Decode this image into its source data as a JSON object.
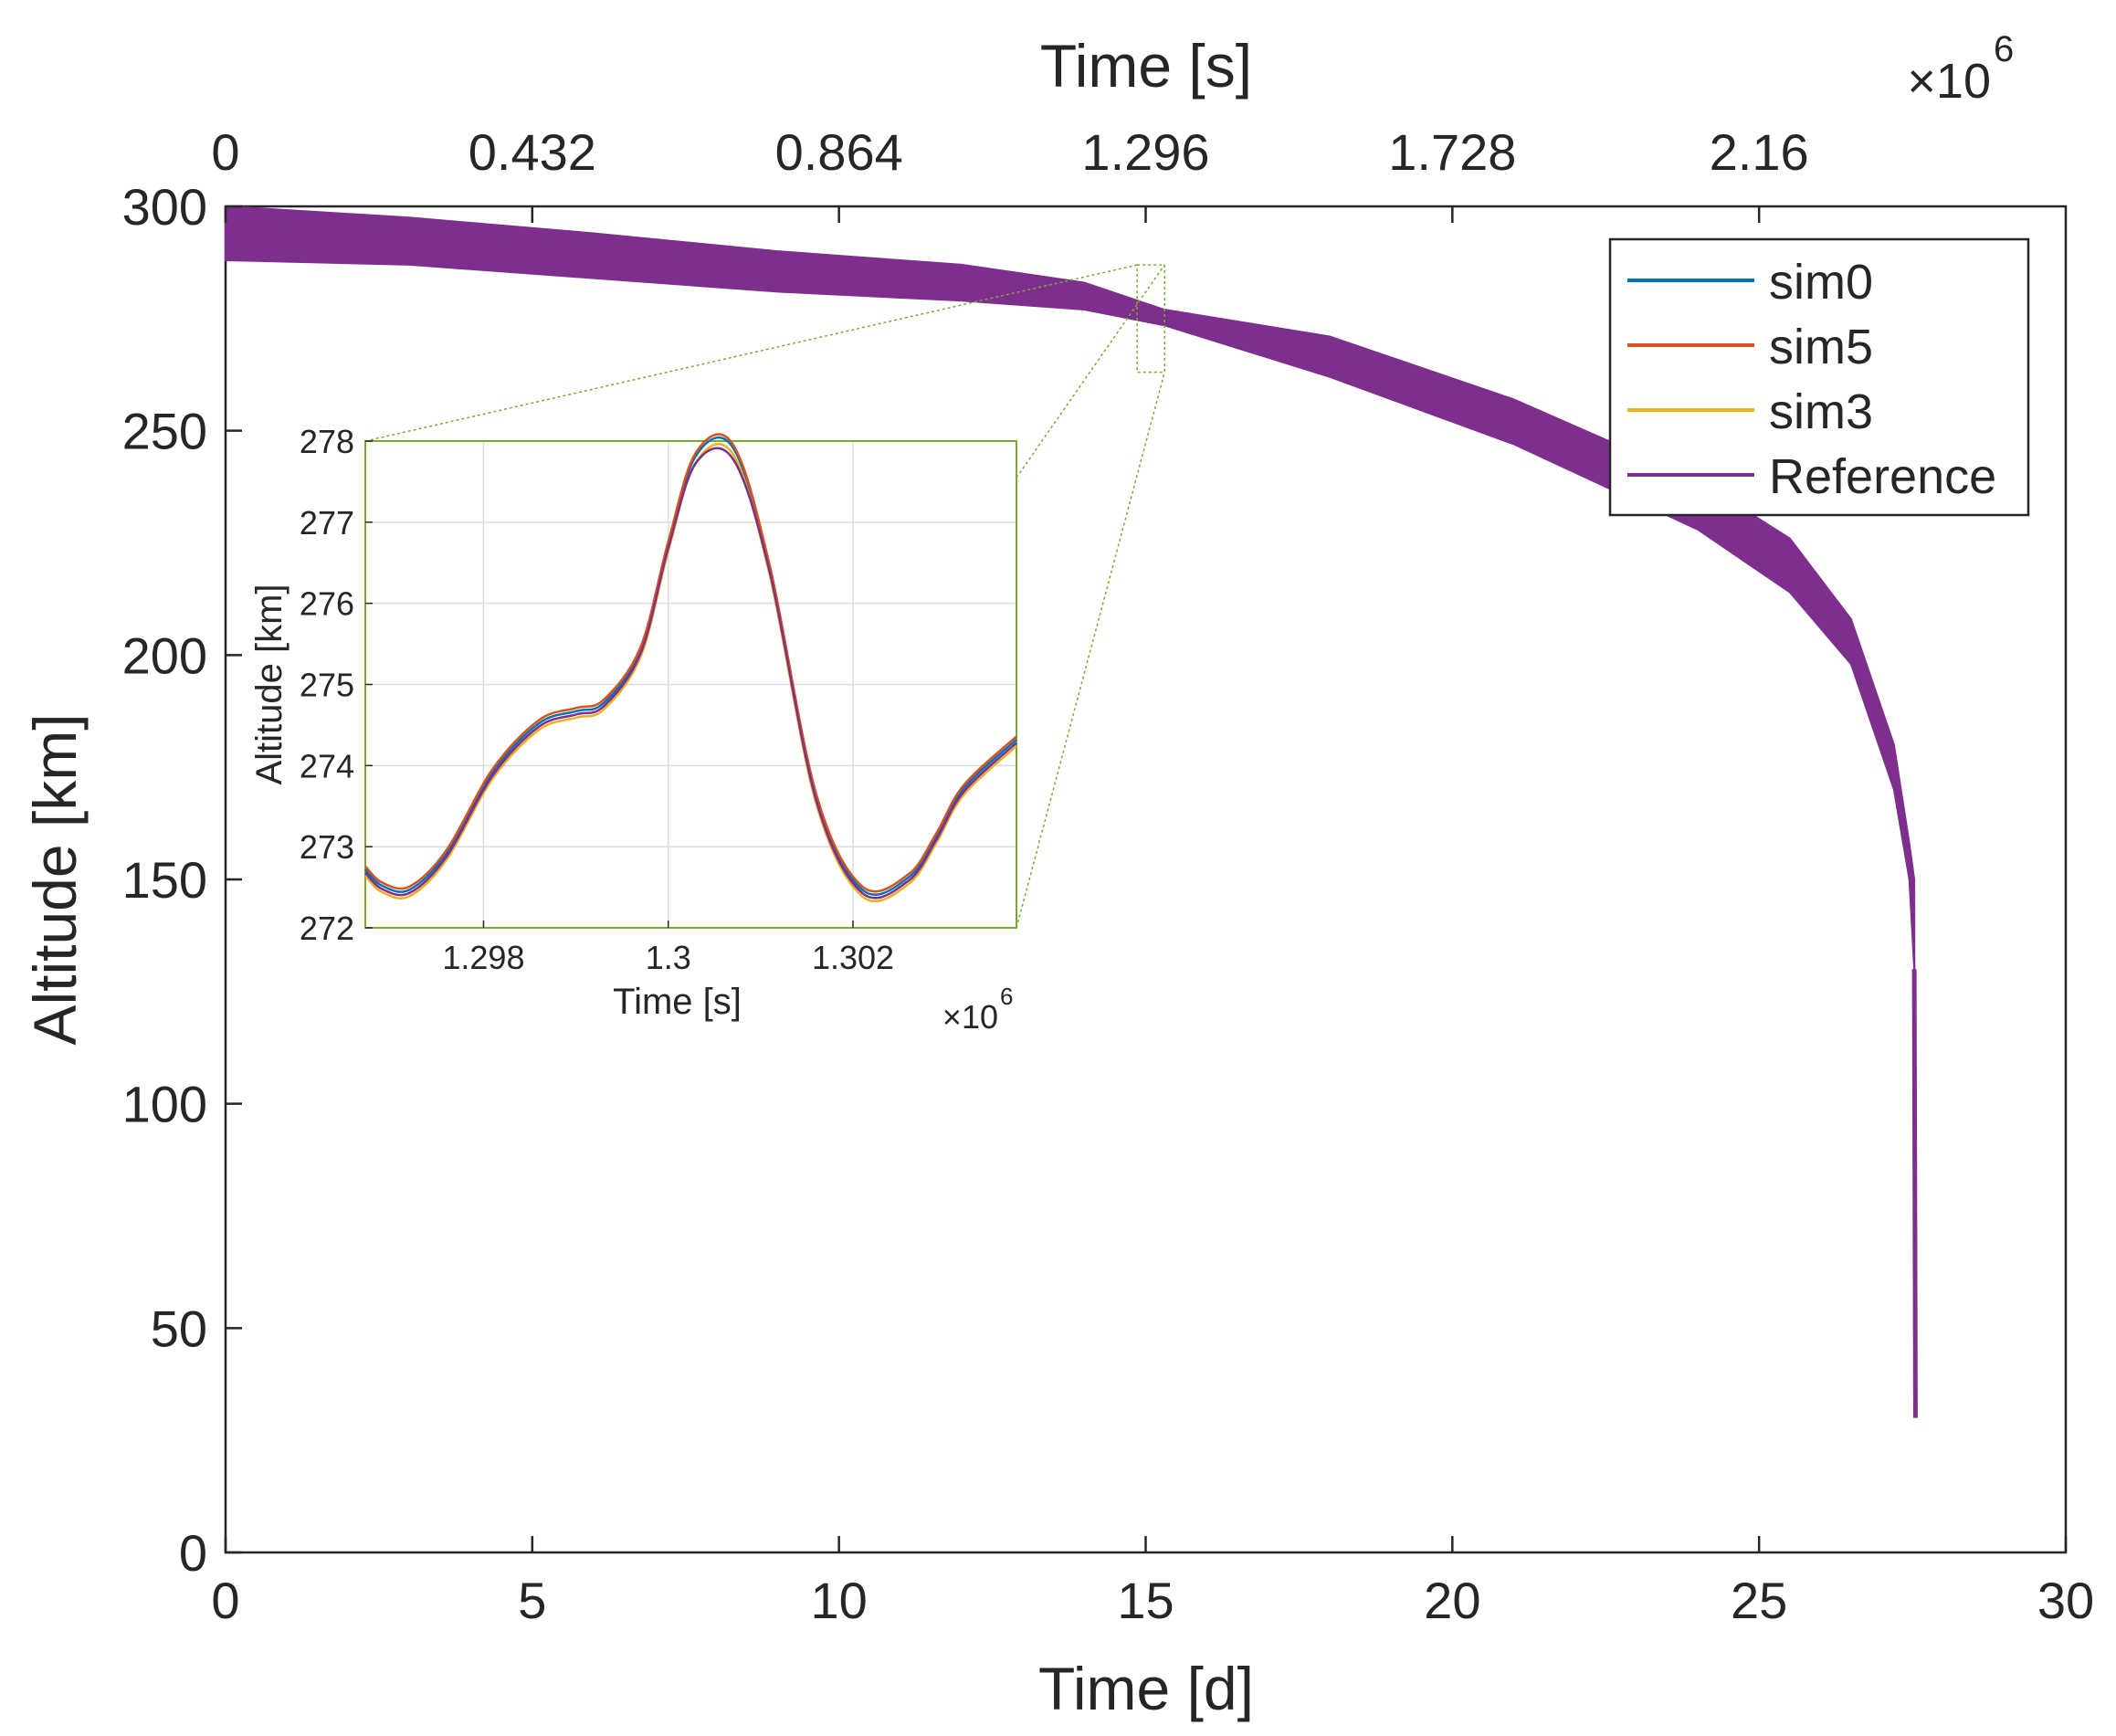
{
  "chart_data": {
    "type": "line",
    "title": "",
    "xlabel": "Time [d]",
    "ylabel": "Altitude [km]",
    "xlim": [
      0,
      30
    ],
    "ylim": [
      0,
      300
    ],
    "xticks": [
      0,
      5,
      10,
      15,
      20,
      25,
      30
    ],
    "yticks": [
      0,
      50,
      100,
      150,
      200,
      250,
      300
    ],
    "grid": false,
    "top_axis": {
      "label": "Time [s]",
      "ticks": [
        "0",
        "0.432",
        "0.864",
        "1.296",
        "1.728",
        "2.16"
      ],
      "tick_days": [
        0,
        5,
        10,
        15,
        20,
        25
      ],
      "exponent": "×10",
      "exponent_power": "6"
    },
    "legend": {
      "position": "top-right",
      "entries": [
        {
          "name": "sim0",
          "color": "#0072BD"
        },
        {
          "name": "sim5",
          "color": "#D95319"
        },
        {
          "name": "sim3",
          "color": "#EDB120"
        },
        {
          "name": "Reference",
          "color": "#7E2F8E"
        }
      ]
    },
    "series_band": {
      "name": "Reference",
      "color": "#7E2F8E",
      "note": "oscillating altitude drawn as a band of upper/lower envelopes",
      "points": [
        {
          "t": 0,
          "upper": 300,
          "lower": 288
        },
        {
          "t": 3,
          "upper": 297.5,
          "lower": 287
        },
        {
          "t": 6,
          "upper": 294,
          "lower": 284
        },
        {
          "t": 9,
          "upper": 290,
          "lower": 281
        },
        {
          "t": 12,
          "upper": 287,
          "lower": 279
        },
        {
          "t": 14,
          "upper": 283,
          "lower": 277
        },
        {
          "t": 15.3,
          "upper": 277,
          "lower": 273.5
        },
        {
          "t": 18,
          "upper": 271,
          "lower": 262
        },
        {
          "t": 21,
          "upper": 257,
          "lower": 247
        },
        {
          "t": 24,
          "upper": 239,
          "lower": 228
        },
        {
          "t": 25.5,
          "upper": 226,
          "lower": 214
        },
        {
          "t": 26.5,
          "upper": 208,
          "lower": 198
        },
        {
          "t": 27.2,
          "upper": 180,
          "lower": 170
        },
        {
          "t": 27.45,
          "upper": 158,
          "lower": 150
        },
        {
          "t": 27.53,
          "upper": 150,
          "lower": 130
        },
        {
          "t": 27.55,
          "upper": 30,
          "lower": 30
        }
      ]
    },
    "zoom_region": {
      "x": [
        14.98,
        15.07
      ],
      "y": [
        272,
        278
      ]
    },
    "inset": {
      "xlabel": "Time [s]",
      "ylabel": "Altitude [km]",
      "xlim": [
        1.29672,
        1.30377
      ],
      "ylim": [
        272,
        278
      ],
      "xticks": [
        1.298,
        1.3,
        1.302
      ],
      "xtick_labels": [
        "1.298",
        "1.3",
        "1.302"
      ],
      "yticks": [
        272,
        273,
        274,
        275,
        276,
        277,
        278
      ],
      "exponent": "×10",
      "exponent_power": "6",
      "grid": true,
      "series": [
        {
          "name": "sim0",
          "color": "#0072BD",
          "dy": 0.02,
          "x": [
            1.29672,
            1.2969,
            1.2972,
            1.2976,
            1.2981,
            1.2986,
            1.299,
            1.2993,
            1.2997,
            1.3,
            1.3003,
            1.3007,
            1.3011,
            1.3016,
            1.3021,
            1.3026,
            1.3029,
            1.3032,
            1.30377
          ],
          "y": [
            272.7,
            272.5,
            272.45,
            272.9,
            273.9,
            274.5,
            274.65,
            274.75,
            275.4,
            276.7,
            277.8,
            277.9,
            276.4,
            273.6,
            272.45,
            272.6,
            273.1,
            273.7,
            274.3
          ]
        },
        {
          "name": "sim5",
          "color": "#D95319",
          "dy": 0.06,
          "x": [
            1.29672,
            1.2969,
            1.2972,
            1.2976,
            1.2981,
            1.2986,
            1.299,
            1.2993,
            1.2997,
            1.3,
            1.3003,
            1.3007,
            1.3011,
            1.3016,
            1.3021,
            1.3026,
            1.3029,
            1.3032,
            1.30377
          ],
          "y": [
            272.7,
            272.5,
            272.45,
            272.9,
            273.9,
            274.5,
            274.65,
            274.75,
            275.4,
            276.7,
            277.8,
            277.9,
            276.4,
            273.6,
            272.45,
            272.6,
            273.1,
            273.7,
            274.3
          ]
        },
        {
          "name": "sim3",
          "color": "#EDB120",
          "dy": -0.06,
          "x": [
            1.29672,
            1.2969,
            1.2972,
            1.2976,
            1.2981,
            1.2986,
            1.299,
            1.2993,
            1.2997,
            1.3,
            1.3003,
            1.3007,
            1.3011,
            1.3016,
            1.3021,
            1.3026,
            1.3029,
            1.3032,
            1.30377
          ],
          "y": [
            272.7,
            272.5,
            272.45,
            272.9,
            273.9,
            274.5,
            274.65,
            274.75,
            275.4,
            276.7,
            277.8,
            277.9,
            276.4,
            273.6,
            272.45,
            272.6,
            273.1,
            273.7,
            274.3
          ]
        },
        {
          "name": "Reference",
          "color": "#7E2F8E",
          "dy": -0.02,
          "x": [
            1.29672,
            1.2969,
            1.2972,
            1.2976,
            1.2981,
            1.2986,
            1.299,
            1.2993,
            1.2997,
            1.3,
            1.3003,
            1.3007,
            1.3011,
            1.3016,
            1.3021,
            1.3026,
            1.3029,
            1.3032,
            1.30377
          ],
          "y": [
            272.7,
            272.5,
            272.45,
            272.9,
            273.9,
            274.5,
            274.65,
            274.75,
            275.4,
            276.7,
            277.75,
            277.8,
            276.4,
            273.6,
            272.45,
            272.6,
            273.1,
            273.7,
            274.3
          ]
        }
      ]
    }
  }
}
